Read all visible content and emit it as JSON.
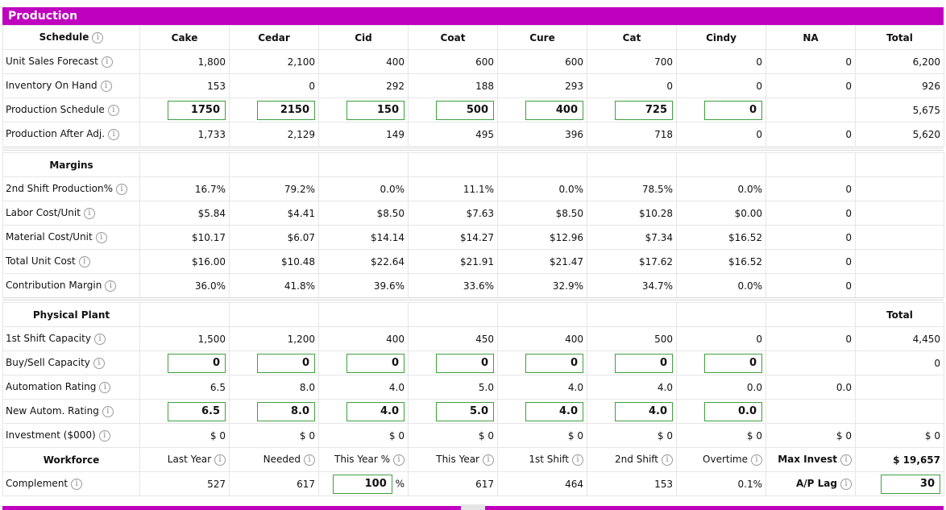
{
  "title": "Production",
  "colors": {
    "accent": "#bf00bf",
    "input_border": "#3fa03f"
  },
  "schedule": {
    "header": "Schedule",
    "products": [
      "Cake",
      "Cedar",
      "Cid",
      "Coat",
      "Cure",
      "Cat",
      "Cindy",
      "NA",
      "Total"
    ],
    "rows": [
      {
        "label": "Unit Sales Forecast",
        "values": [
          "1,800",
          "2,100",
          "400",
          "600",
          "600",
          "700",
          "0",
          "0",
          "6,200"
        ]
      },
      {
        "label": "Inventory On Hand",
        "values": [
          "153",
          "0",
          "292",
          "188",
          "293",
          "0",
          "0",
          "0",
          "926"
        ]
      },
      {
        "label": "Production Schedule",
        "inputs": [
          "1750",
          "2150",
          "150",
          "500",
          "400",
          "725",
          "0"
        ],
        "total": "5,675"
      },
      {
        "label": "Production After Adj.",
        "values": [
          "1,733",
          "2,129",
          "149",
          "495",
          "396",
          "718",
          "0",
          "0",
          "5,620"
        ]
      }
    ]
  },
  "margins": {
    "header": "Margins",
    "rows": [
      {
        "label": "2nd Shift Production%",
        "values": [
          "16.7%",
          "79.2%",
          "0.0%",
          "11.1%",
          "0.0%",
          "78.5%",
          "0.0%",
          "0"
        ]
      },
      {
        "label": "Labor Cost/Unit",
        "values": [
          "$5.84",
          "$4.41",
          "$8.50",
          "$7.63",
          "$8.50",
          "$10.28",
          "$0.00",
          "0"
        ]
      },
      {
        "label": "Material Cost/Unit",
        "values": [
          "$10.17",
          "$6.07",
          "$14.14",
          "$14.27",
          "$12.96",
          "$7.34",
          "$16.52",
          "0"
        ]
      },
      {
        "label": "Total Unit Cost",
        "values": [
          "$16.00",
          "$10.48",
          "$22.64",
          "$21.91",
          "$21.47",
          "$17.62",
          "$16.52",
          "0"
        ]
      },
      {
        "label": "Contribution Margin",
        "values": [
          "36.0%",
          "41.8%",
          "39.6%",
          "33.6%",
          "32.9%",
          "34.7%",
          "0.0%",
          "0"
        ]
      }
    ]
  },
  "plant": {
    "header": "Physical Plant",
    "total_header": "Total",
    "capacity": {
      "label": "1st Shift Capacity",
      "values": [
        "1,500",
        "1,200",
        "400",
        "450",
        "400",
        "500",
        "0",
        "0",
        "4,450"
      ]
    },
    "buysell": {
      "label": "Buy/Sell Capacity",
      "inputs": [
        "0",
        "0",
        "0",
        "0",
        "0",
        "0",
        "0"
      ],
      "total": "0"
    },
    "automation": {
      "label": "Automation Rating",
      "values": [
        "6.5",
        "8.0",
        "4.0",
        "5.0",
        "4.0",
        "4.0",
        "0.0",
        "0.0"
      ]
    },
    "new_autom": {
      "label": "New Autom. Rating",
      "inputs": [
        "6.5",
        "8.0",
        "4.0",
        "5.0",
        "4.0",
        "4.0",
        "0.0"
      ]
    },
    "investment": {
      "label": "Investment ($000)",
      "values": [
        "$ 0",
        "$ 0",
        "$ 0",
        "$ 0",
        "$ 0",
        "$ 0",
        "$ 0",
        "$ 0",
        "$ 0"
      ]
    }
  },
  "workforce": {
    "header": "Workforce",
    "columns": [
      "Last Year",
      "Needed",
      "This Year %",
      "This Year",
      "1st Shift",
      "2nd Shift",
      "Overtime"
    ],
    "max_invest_label": "Max Invest",
    "max_invest_value": "$ 19,657",
    "complement_label": "Complement",
    "complement": {
      "last_year": "527",
      "needed": "617",
      "this_year_pct": "100",
      "pct_sign": "%",
      "this_year": "617",
      "first_shift": "464",
      "second_shift": "153",
      "overtime": "0.1%"
    },
    "ap_lag_label": "A/P Lag",
    "ap_lag_value": "30"
  }
}
